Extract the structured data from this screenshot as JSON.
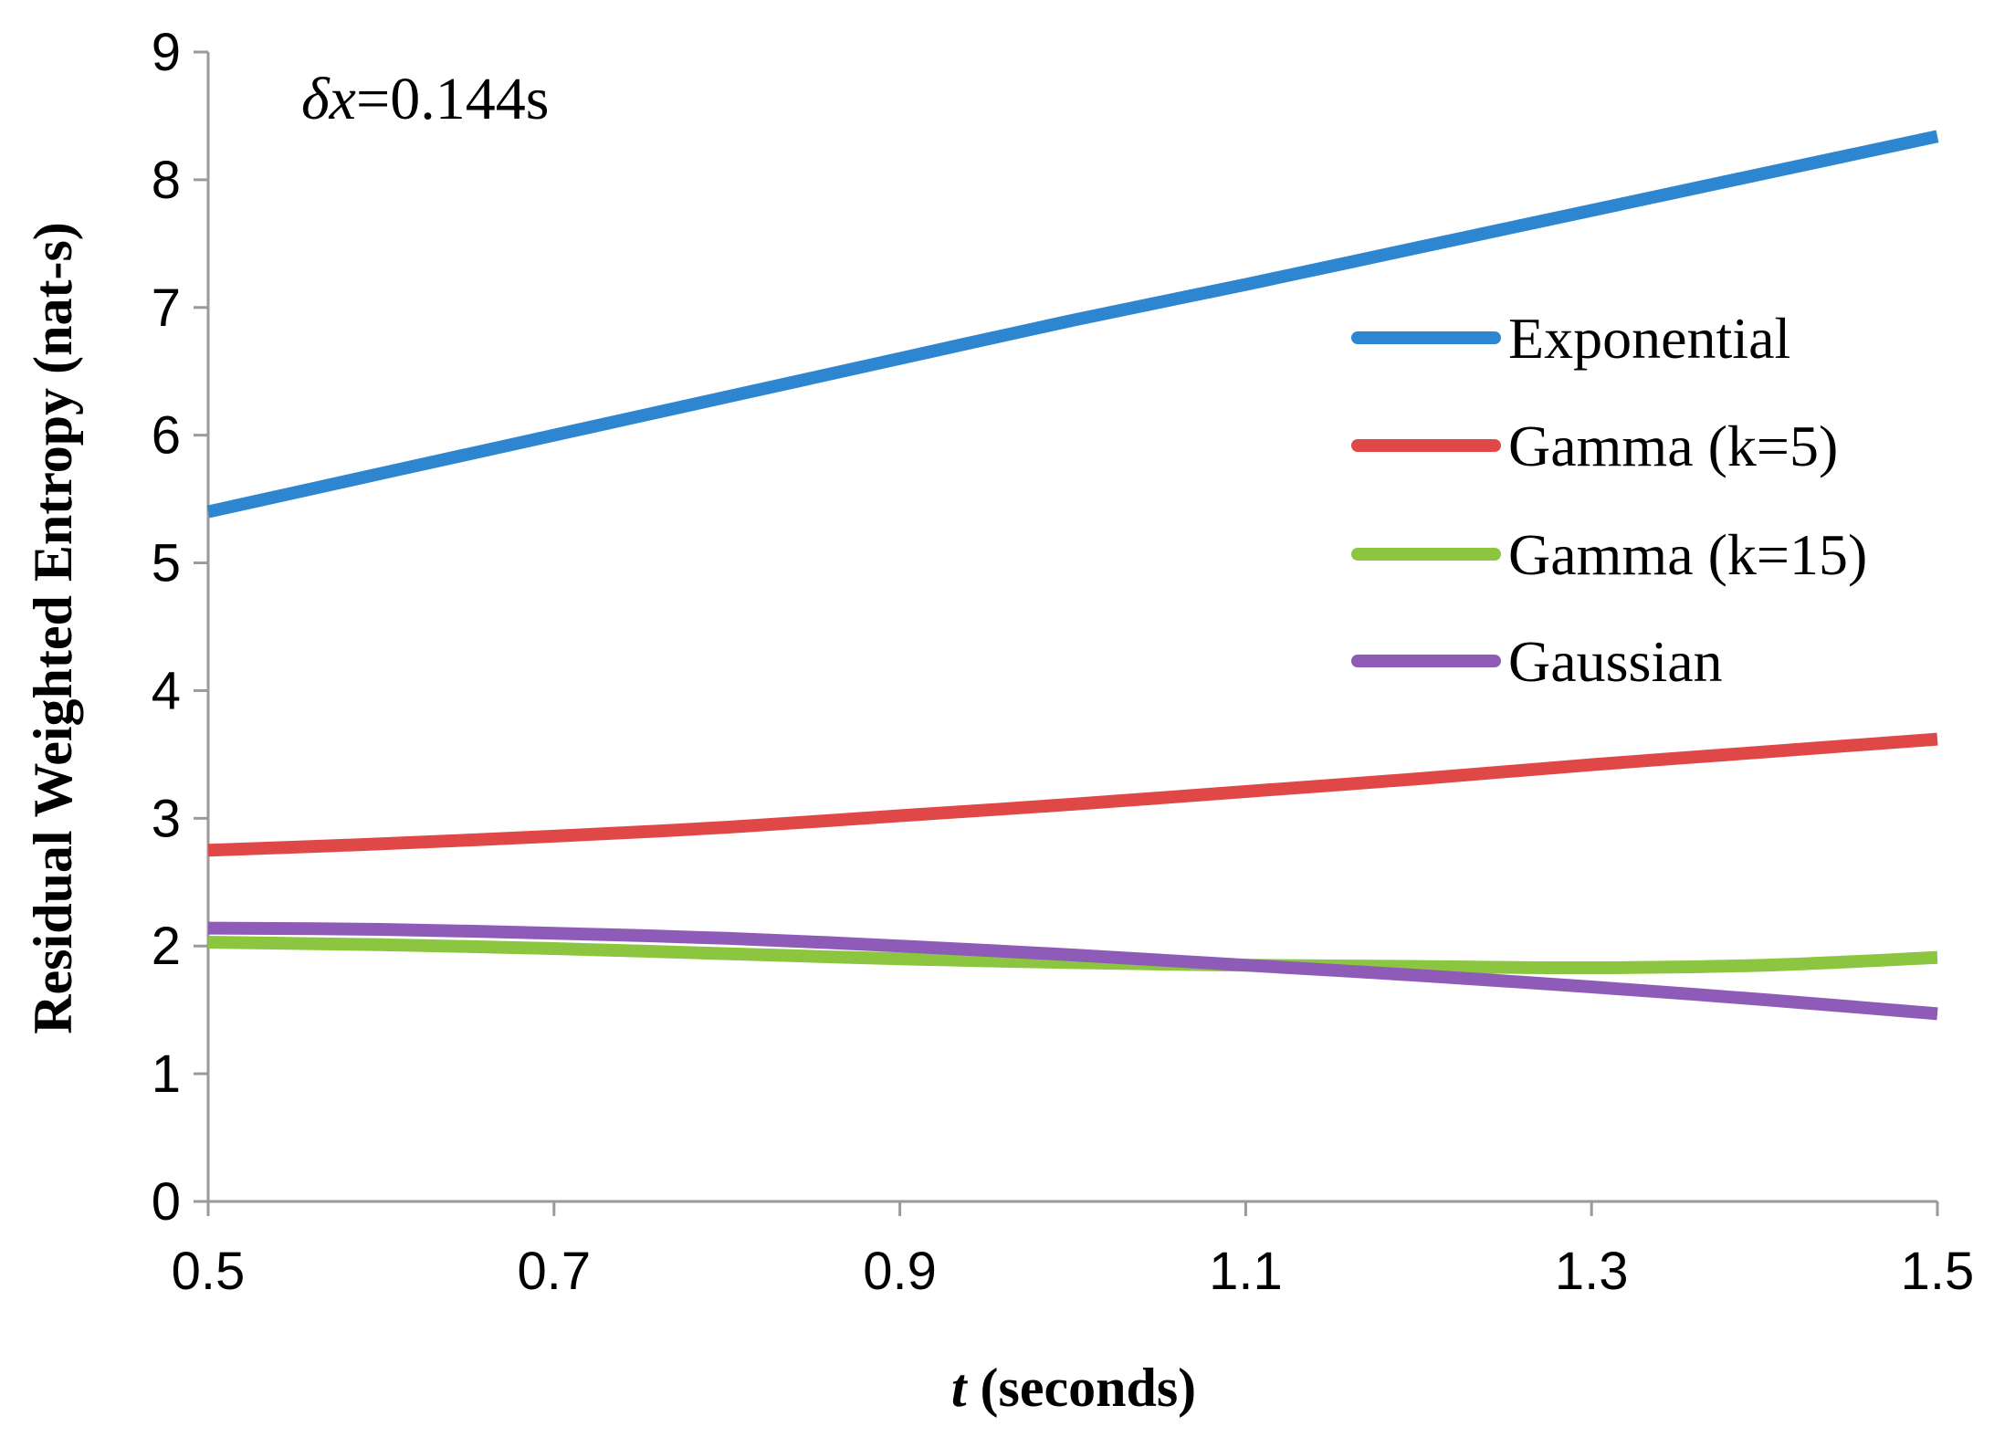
{
  "chart_data": {
    "type": "line",
    "title": "",
    "annotation": {
      "symbol": "δx",
      "text": "=0.144s"
    },
    "xlabel": {
      "italic_part": "t",
      "rest": " (seconds)"
    },
    "ylabel": "Residual Weighted Entropy (nat-s)",
    "xlim": [
      0.5,
      1.5
    ],
    "ylim": [
      0,
      9
    ],
    "xticks": [
      0.5,
      0.7,
      0.9,
      1.1,
      1.3,
      1.5
    ],
    "xtick_labels": [
      "0.5",
      "0.7",
      "0.9",
      "1.1",
      "1.3",
      "1.5"
    ],
    "yticks": [
      0,
      1,
      2,
      3,
      4,
      5,
      6,
      7,
      8,
      9
    ],
    "ytick_labels": [
      "0",
      "1",
      "2",
      "3",
      "4",
      "5",
      "6",
      "7",
      "8",
      "9"
    ],
    "grid": false,
    "legend_position": "right",
    "x": [
      0.5,
      0.6,
      0.7,
      0.8,
      0.9,
      1.0,
      1.1,
      1.2,
      1.3,
      1.4,
      1.5
    ],
    "series": [
      {
        "name": "Exponential",
        "color": "#2E86D1",
        "values": [
          5.4,
          5.7,
          6.0,
          6.3,
          6.6,
          6.9,
          7.18,
          7.47,
          7.76,
          8.05,
          8.34
        ]
      },
      {
        "name": "Gamma (k=5)",
        "color": "#E04848",
        "values": [
          2.75,
          2.8,
          2.86,
          2.93,
          3.02,
          3.11,
          3.21,
          3.31,
          3.42,
          3.52,
          3.62
        ]
      },
      {
        "name": "Gamma (k=15)",
        "color": "#8CC53F",
        "values": [
          2.03,
          2.01,
          1.98,
          1.94,
          1.9,
          1.87,
          1.85,
          1.84,
          1.83,
          1.85,
          1.91
        ]
      },
      {
        "name": "Gaussian",
        "color": "#8E5CB8",
        "values": [
          2.14,
          2.13,
          2.1,
          2.06,
          2.0,
          1.93,
          1.85,
          1.77,
          1.68,
          1.58,
          1.47
        ]
      }
    ]
  }
}
